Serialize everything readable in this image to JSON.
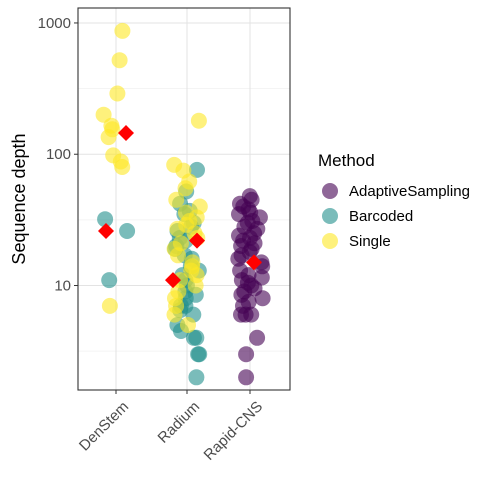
{
  "chart_data": {
    "type": "scatter",
    "subtype": "jittered strip plot with mean markers",
    "title": "",
    "xlabel": "",
    "ylabel": "Sequence depth",
    "y_scale": "log10",
    "ylim": [
      1.6,
      1300
    ],
    "y_ticks": [
      10,
      100,
      1000
    ],
    "y_tick_labels": [
      "10",
      "100",
      "1000"
    ],
    "categories": [
      "DenStem",
      "Radium",
      "Rapid-CNS"
    ],
    "grid": true,
    "legend": {
      "title": "Method",
      "placement": "right"
    },
    "series": [
      {
        "name": "AdaptiveSampling",
        "color": "#440154",
        "points": [
          {
            "x": "Rapid-CNS",
            "y": 48
          },
          {
            "x": "Rapid-CNS",
            "y": 45
          },
          {
            "x": "Rapid-CNS",
            "y": 42
          },
          {
            "x": "Rapid-CNS",
            "y": 40
          },
          {
            "x": "Rapid-CNS",
            "y": 38
          },
          {
            "x": "Rapid-CNS",
            "y": 36
          },
          {
            "x": "Rapid-CNS",
            "y": 35
          },
          {
            "x": "Rapid-CNS",
            "y": 33
          },
          {
            "x": "Rapid-CNS",
            "y": 31
          },
          {
            "x": "Rapid-CNS",
            "y": 30
          },
          {
            "x": "Rapid-CNS",
            "y": 28
          },
          {
            "x": "Rapid-CNS",
            "y": 27
          },
          {
            "x": "Rapid-CNS",
            "y": 25
          },
          {
            "x": "Rapid-CNS",
            "y": 24
          },
          {
            "x": "Rapid-CNS",
            "y": 23
          },
          {
            "x": "Rapid-CNS",
            "y": 22
          },
          {
            "x": "Rapid-CNS",
            "y": 21
          },
          {
            "x": "Rapid-CNS",
            "y": 20
          },
          {
            "x": "Rapid-CNS",
            "y": 19
          },
          {
            "x": "Rapid-CNS",
            "y": 18
          },
          {
            "x": "Rapid-CNS",
            "y": 17
          },
          {
            "x": "Rapid-CNS",
            "y": 16
          },
          {
            "x": "Rapid-CNS",
            "y": 15
          },
          {
            "x": "Rapid-CNS",
            "y": 14
          },
          {
            "x": "Rapid-CNS",
            "y": 13
          },
          {
            "x": "Rapid-CNS",
            "y": 12
          },
          {
            "x": "Rapid-CNS",
            "y": 11.5
          },
          {
            "x": "Rapid-CNS",
            "y": 11
          },
          {
            "x": "Rapid-CNS",
            "y": 10.5
          },
          {
            "x": "Rapid-CNS",
            "y": 10
          },
          {
            "x": "Rapid-CNS",
            "y": 9.5
          },
          {
            "x": "Rapid-CNS",
            "y": 9
          },
          {
            "x": "Rapid-CNS",
            "y": 8.5
          },
          {
            "x": "Rapid-CNS",
            "y": 8
          },
          {
            "x": "Rapid-CNS",
            "y": 7.5
          },
          {
            "x": "Rapid-CNS",
            "y": 7
          },
          {
            "x": "Rapid-CNS",
            "y": 6
          },
          {
            "x": "Rapid-CNS",
            "y": 6
          },
          {
            "x": "Rapid-CNS",
            "y": 6
          },
          {
            "x": "Rapid-CNS",
            "y": 4
          },
          {
            "x": "Rapid-CNS",
            "y": 3
          },
          {
            "x": "Rapid-CNS",
            "y": 2
          }
        ],
        "mean": {
          "x": "Rapid-CNS",
          "y": 15
        }
      },
      {
        "name": "Barcoded",
        "color": "#21908C",
        "points": [
          {
            "x": "DenStem",
            "y": 32
          },
          {
            "x": "DenStem",
            "y": 26
          },
          {
            "x": "DenStem",
            "y": 11
          },
          {
            "x": "Radium",
            "y": 76
          },
          {
            "x": "Radium",
            "y": 52
          },
          {
            "x": "Radium",
            "y": 42
          },
          {
            "x": "Radium",
            "y": 37
          },
          {
            "x": "Radium",
            "y": 35
          },
          {
            "x": "Radium",
            "y": 30
          },
          {
            "x": "Radium",
            "y": 28
          },
          {
            "x": "Radium",
            "y": 26
          },
          {
            "x": "Radium",
            "y": 23
          },
          {
            "x": "Radium",
            "y": 22
          },
          {
            "x": "Radium",
            "y": 20
          },
          {
            "x": "Radium",
            "y": 19
          },
          {
            "x": "Radium",
            "y": 17
          },
          {
            "x": "Radium",
            "y": 16
          },
          {
            "x": "Radium",
            "y": 14
          },
          {
            "x": "Radium",
            "y": 13
          },
          {
            "x": "Radium",
            "y": 12
          },
          {
            "x": "Radium",
            "y": 11
          },
          {
            "x": "Radium",
            "y": 10
          },
          {
            "x": "Radium",
            "y": 9
          },
          {
            "x": "Radium",
            "y": 8.5
          },
          {
            "x": "Radium",
            "y": 8
          },
          {
            "x": "Radium",
            "y": 7
          },
          {
            "x": "Radium",
            "y": 7
          },
          {
            "x": "Radium",
            "y": 6.5
          },
          {
            "x": "Radium",
            "y": 6
          },
          {
            "x": "Radium",
            "y": 5
          },
          {
            "x": "Radium",
            "y": 4.5
          },
          {
            "x": "Radium",
            "y": 4
          },
          {
            "x": "Radium",
            "y": 4
          },
          {
            "x": "Radium",
            "y": 3
          },
          {
            "x": "Radium",
            "y": 3
          },
          {
            "x": "Radium",
            "y": 2
          }
        ],
        "mean": {
          "x": "Radium",
          "y": 11
        }
      },
      {
        "name": "Single",
        "color": "#FDE725",
        "points": [
          {
            "x": "DenStem",
            "y": 870
          },
          {
            "x": "DenStem",
            "y": 520
          },
          {
            "x": "DenStem",
            "y": 290
          },
          {
            "x": "DenStem",
            "y": 200
          },
          {
            "x": "DenStem",
            "y": 165
          },
          {
            "x": "DenStem",
            "y": 155
          },
          {
            "x": "DenStem",
            "y": 135
          },
          {
            "x": "DenStem",
            "y": 98
          },
          {
            "x": "DenStem",
            "y": 88
          },
          {
            "x": "DenStem",
            "y": 80
          },
          {
            "x": "DenStem",
            "y": 7
          },
          {
            "x": "Radium",
            "y": 180
          },
          {
            "x": "Radium",
            "y": 83
          },
          {
            "x": "Radium",
            "y": 75
          },
          {
            "x": "Radium",
            "y": 62
          },
          {
            "x": "Radium",
            "y": 55
          },
          {
            "x": "Radium",
            "y": 45
          },
          {
            "x": "Radium",
            "y": 40
          },
          {
            "x": "Radium",
            "y": 36
          },
          {
            "x": "Radium",
            "y": 33
          },
          {
            "x": "Radium",
            "y": 31
          },
          {
            "x": "Radium",
            "y": 29
          },
          {
            "x": "Radium",
            "y": 27
          },
          {
            "x": "Radium",
            "y": 25
          },
          {
            "x": "Radium",
            "y": 23
          },
          {
            "x": "Radium",
            "y": 21
          },
          {
            "x": "Radium",
            "y": 19
          },
          {
            "x": "Radium",
            "y": 17
          },
          {
            "x": "Radium",
            "y": 15
          },
          {
            "x": "Radium",
            "y": 14
          },
          {
            "x": "Radium",
            "y": 13
          },
          {
            "x": "Radium",
            "y": 12
          },
          {
            "x": "Radium",
            "y": 11
          },
          {
            "x": "Radium",
            "y": 10
          },
          {
            "x": "Radium",
            "y": 9
          },
          {
            "x": "Radium",
            "y": 8
          },
          {
            "x": "Radium",
            "y": 7
          },
          {
            "x": "Radium",
            "y": 6
          },
          {
            "x": "Radium",
            "y": 5
          }
        ],
        "mean": {
          "x": "DenStem",
          "y": 145
        }
      }
    ],
    "means": [
      {
        "x": "DenStem",
        "y": 26,
        "color": "#FF0000"
      },
      {
        "x": "DenStem",
        "y": 145,
        "color": "#FF0000"
      },
      {
        "x": "Radium",
        "y": 11,
        "color": "#FF0000"
      },
      {
        "x": "Radium",
        "y": 22,
        "color": "#FF0000"
      },
      {
        "x": "Rapid-CNS",
        "y": 15,
        "color": "#FF0000"
      }
    ]
  }
}
